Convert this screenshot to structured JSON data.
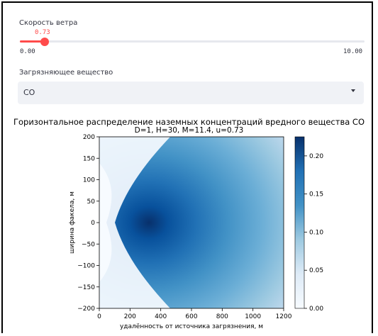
{
  "wind_slider": {
    "label": "Скорость ветра",
    "value": 0.73,
    "value_text": "0.73",
    "min_text": "0.00",
    "max_text": "10.00",
    "min": 0,
    "max": 10,
    "accent": "#ff4b4b"
  },
  "pollutant_select": {
    "label": "Загрязняющее вещество",
    "value": "CO"
  },
  "chart_data": {
    "type": "heatmap",
    "title": "Горизонтальное распределение наземных концентраций вредного вещества CO",
    "subtitle": "D=1, H=30, M=11.4, u=0.73",
    "xlabel": "удалённость от источника загрязнения, м",
    "ylabel": "ширина факела, м",
    "xlim": [
      0,
      1200
    ],
    "ylim": [
      -200,
      200
    ],
    "x_ticks": [
      "0",
      "200",
      "400",
      "600",
      "800",
      "1000",
      "1200"
    ],
    "y_ticks": [
      "200",
      "150",
      "100",
      "50",
      "0",
      "−50",
      "−100",
      "−150",
      "−200"
    ],
    "colorbar": {
      "range": [
        0,
        0.225
      ],
      "ticks": [
        "0.20",
        "0.15",
        "0.10",
        "0.05",
        "0.00"
      ],
      "colormap": "Blues"
    },
    "peak": {
      "x": 330,
      "y": 0,
      "value": 0.225
    }
  }
}
